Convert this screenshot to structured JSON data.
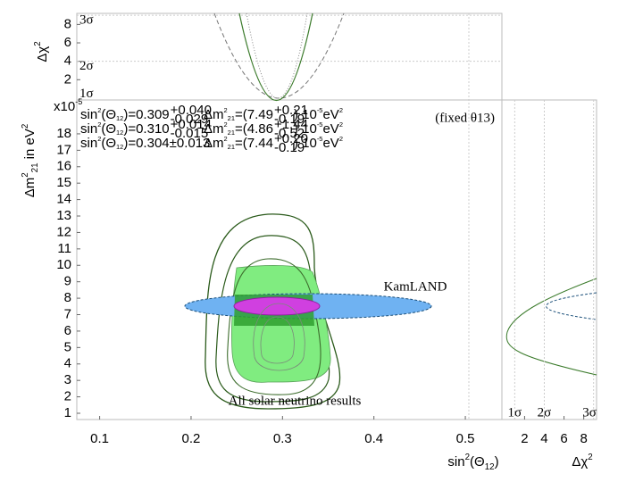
{
  "chart_data": [
    {
      "type": "contour",
      "xlabel": [
        "sin",
        "2",
        "(Θ",
        "12",
        ")"
      ],
      "ylabel": [
        "Δm",
        "2",
        "21",
        " in eV",
        "2"
      ],
      "y_multiplier": [
        "x10",
        "-5"
      ],
      "xlim": [
        0.075,
        0.54
      ],
      "ylim": [
        0.62,
        20.06
      ],
      "xticks": [
        0.1,
        0.2,
        0.3,
        0.4,
        0.5
      ],
      "yticks": [
        1,
        2,
        3,
        4,
        5,
        6,
        7,
        8,
        9,
        10,
        11,
        12,
        13,
        14,
        15,
        16,
        17,
        18
      ],
      "annotations": {
        "fixed": "(fixed θ13)",
        "kamland": "KamLAND",
        "solar": "All solar neutrino results"
      },
      "legend": {
        "sin2_label": [
          "sin",
          "2",
          "(Θ",
          "12",
          ")="
        ],
        "dm2_label": [
          "Δm",
          "2",
          "21",
          "=("
        ],
        "dm2_unit": [
          ") 10",
          "-5",
          "eV",
          "2"
        ],
        "rows": [
          {
            "color": "#1b4f7a",
            "sin2": "0.309",
            "sin2_plus": "+0.040",
            "sin2_minus": "-0.029",
            "dm2": "7.49",
            "dm2_plus": "+0.21",
            "dm2_minus": "-0.19"
          },
          {
            "color": "#2e6b1e",
            "sin2": "0.310",
            "sin2_plus": "+0.014",
            "sin2_minus": "-0.015",
            "dm2": "4.86",
            "dm2_plus": "+1.44",
            "dm2_minus": "-0.52"
          },
          {
            "color": "#b030c0",
            "sin2": "0.304±0.013",
            "dm2": "7.44",
            "dm2_plus": "+0.20",
            "dm2_minus": "-0.19"
          }
        ]
      }
    },
    {
      "type": "line",
      "ylabel": [
        "Δχ",
        "2"
      ],
      "xlim": [
        0.075,
        0.54
      ],
      "ylim": [
        -0.2,
        9.2
      ],
      "yticks": [
        2,
        4,
        6,
        8
      ],
      "sigma_ticks": [
        {
          "value": 1,
          "label": "1σ"
        },
        {
          "value": 4,
          "label": "2σ"
        },
        {
          "value": 9,
          "label": "3σ"
        }
      ]
    },
    {
      "type": "line",
      "xlabel": [
        "Δχ",
        "2"
      ],
      "xlim": [
        -0.3,
        9.3
      ],
      "xticks": [
        2,
        4,
        6,
        8
      ],
      "sigma_ticks": [
        {
          "value": 1,
          "label": "1σ"
        },
        {
          "value": 4,
          "label": "2σ"
        },
        {
          "value": 9,
          "label": "3σ"
        }
      ]
    }
  ]
}
